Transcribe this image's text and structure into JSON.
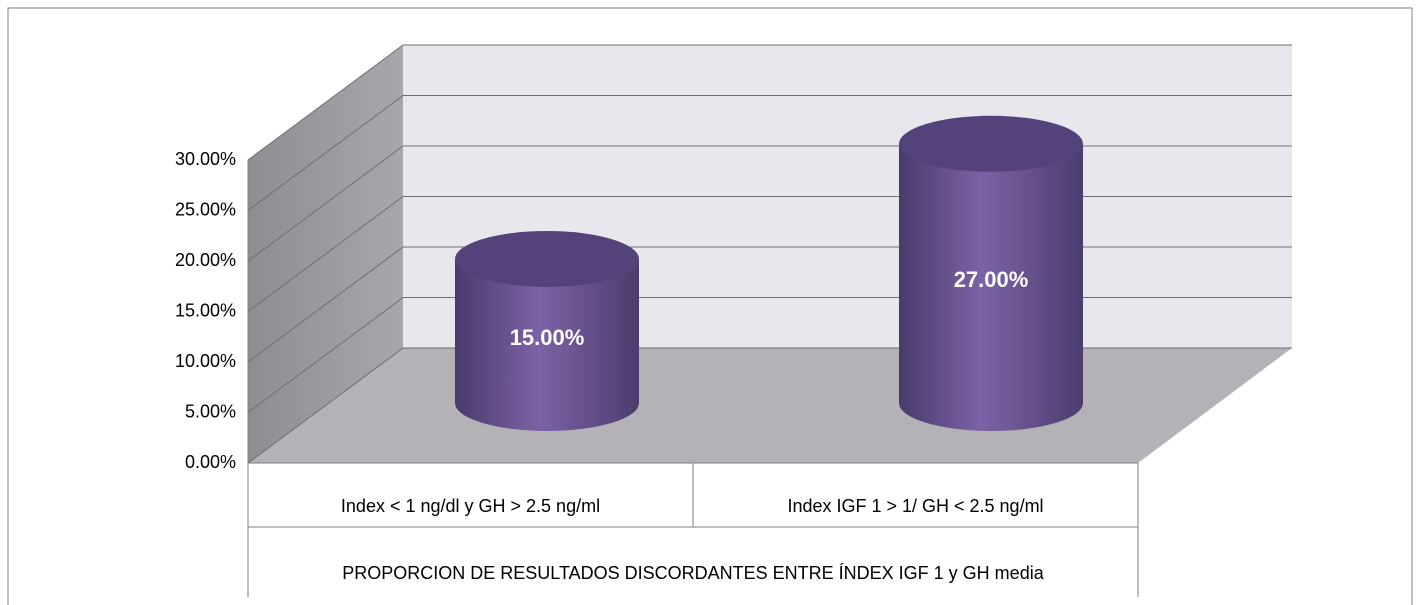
{
  "chart_data": {
    "type": "bar3d",
    "categories": [
      "Index < 1 ng/dl y GH > 2.5 ng/ml",
      "Index IGF 1 > 1/ GH < 2.5 ng/ml"
    ],
    "values": [
      15,
      27
    ],
    "value_labels": [
      "15.00%",
      "27.00%"
    ],
    "color": "#6b5694",
    "xlabel": "PROPORCION DE RESULTADOS DISCORDANTES ENTRE ÍNDEX IGF 1 y GH media",
    "ylim": [
      0,
      30
    ],
    "yticks": [
      {
        "value": 0,
        "label": "0.00%"
      },
      {
        "value": 5,
        "label": "5.00%"
      },
      {
        "value": 10,
        "label": "10.00%"
      },
      {
        "value": 15,
        "label": "15.00%"
      },
      {
        "value": 20,
        "label": "20.00%"
      },
      {
        "value": 25,
        "label": "25.00%"
      },
      {
        "value": 30,
        "label": "30.00%"
      }
    ],
    "grid": true
  }
}
